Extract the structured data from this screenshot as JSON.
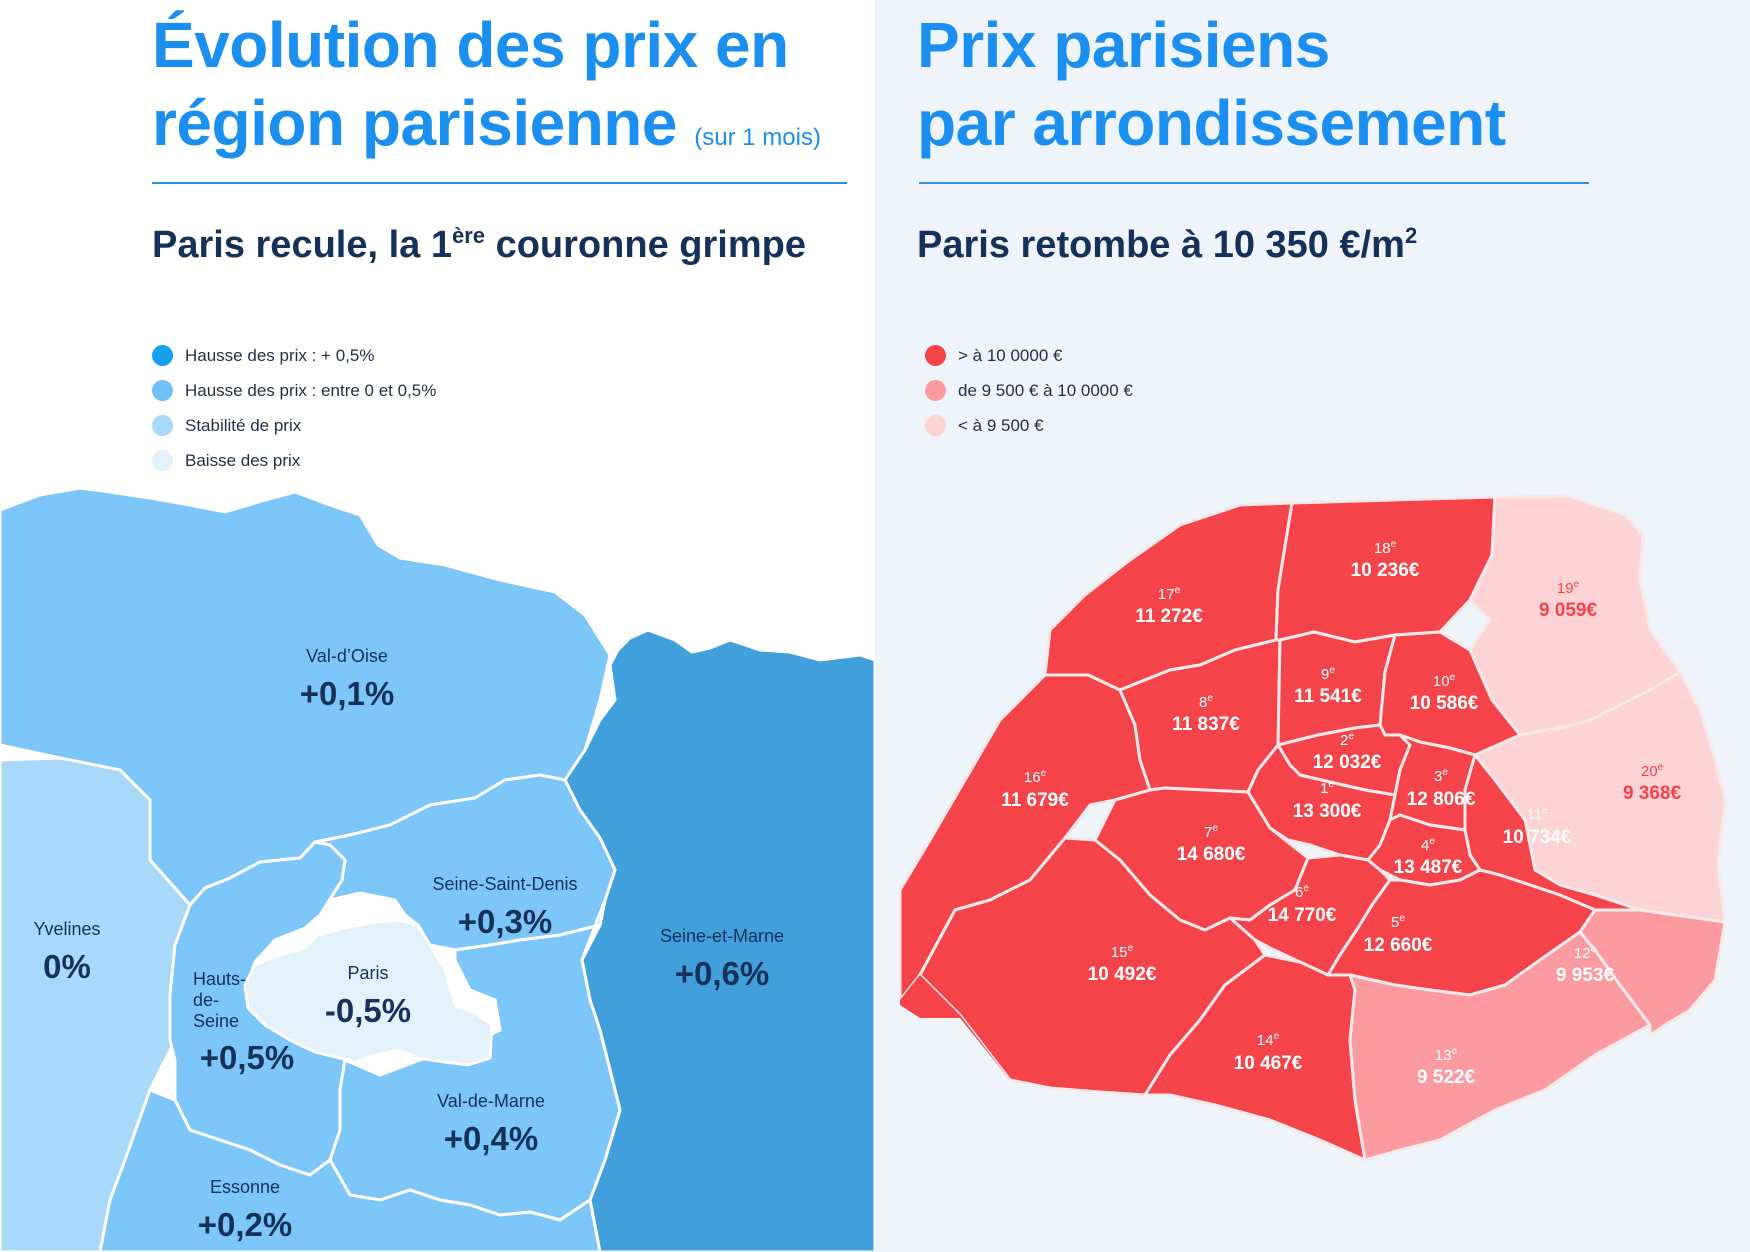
{
  "left": {
    "title": "Évolution des prix en région parisienne",
    "title_line1": "Évolution des prix en",
    "title_line2": "région parisienne",
    "title_note": "(sur 1 mois)",
    "subtitle_part1": "Paris recule, la 1",
    "subtitle_sup": "ère",
    "subtitle_part2": " couronne grimpe",
    "legend": [
      {
        "label": "Hausse des prix : + 0,5%",
        "color": "#14a0ee"
      },
      {
        "label": "Hausse des prix : entre 0 et 0,5%",
        "color": "#72c0f7"
      },
      {
        "label": "Stabilité de prix",
        "color": "#a8d8fa"
      },
      {
        "label": "Baisse des prix",
        "color": "#e3f1fb"
      }
    ],
    "regions": [
      {
        "name": "Val-d’Oise",
        "value": "+0,1%",
        "color": "#7cc6fa"
      },
      {
        "name": "Yvelines",
        "value": "0%",
        "color": "#a8d8fa"
      },
      {
        "name": "Seine-Saint-Denis",
        "value": "+0,3%",
        "color": "#7cc6fa"
      },
      {
        "name": "Seine-et-Marne",
        "value": "+0,6%",
        "color": "#41a0dc"
      },
      {
        "name": "Paris",
        "value": "-0,5%",
        "color": "#e3f1fb"
      },
      {
        "name": "Hauts-de-Seine",
        "name_lines": [
          "Hauts-",
          "de-",
          "Seine"
        ],
        "value": "+0,5%",
        "color": "#7cc6fa"
      },
      {
        "name": "Val-de-Marne",
        "value": "+0,4%",
        "color": "#7cc6fa"
      },
      {
        "name": "Essonne",
        "value": "+0,2%",
        "color": "#7cc6fa"
      }
    ]
  },
  "right": {
    "title_line1": "Prix parisiens",
    "title_line2": "par arrondissement",
    "subtitle_text": "Paris retombe à 10 350 €/m",
    "subtitle_sup": "2",
    "legend": [
      {
        "label": "> à 10 0000 €",
        "color": "#f4444a"
      },
      {
        "label": "de 9 500 € à 10 0000 €",
        "color": "#fb9ba0"
      },
      {
        "label": "< à 9 500 €",
        "color": "#fdd3d5"
      }
    ],
    "arrondissements": [
      {
        "num": "1",
        "sup": "e",
        "price": "13 300€",
        "color": "#f4444a"
      },
      {
        "num": "2",
        "sup": "e",
        "price": "12 032€",
        "color": "#f4444a"
      },
      {
        "num": "3",
        "sup": "e",
        "price": "12 806€",
        "color": "#f4444a"
      },
      {
        "num": "4",
        "sup": "e",
        "price": "13 487€",
        "color": "#f4444a"
      },
      {
        "num": "5",
        "sup": "e",
        "price": "12 660€",
        "color": "#f4444a"
      },
      {
        "num": "6",
        "sup": "e",
        "price": "14 770€",
        "color": "#f4444a"
      },
      {
        "num": "7",
        "sup": "e",
        "price": "14 680€",
        "color": "#f4444a"
      },
      {
        "num": "8",
        "sup": "e",
        "price": "11 837€",
        "color": "#f4444a"
      },
      {
        "num": "9",
        "sup": "e",
        "price": "11 541€",
        "color": "#f4444a"
      },
      {
        "num": "10",
        "sup": "e",
        "price": "10 586€",
        "color": "#f4444a"
      },
      {
        "num": "11",
        "sup": "e",
        "price": "10 734€",
        "color": "#f4444a"
      },
      {
        "num": "12",
        "sup": "e",
        "price": "9 953€",
        "color": "#fb9ba0"
      },
      {
        "num": "13",
        "sup": "e",
        "price": "9 522€",
        "color": "#fb9ba0"
      },
      {
        "num": "14",
        "sup": "e",
        "price": "10 467€",
        "color": "#f4444a"
      },
      {
        "num": "15",
        "sup": "e",
        "price": "10 492€",
        "color": "#f4444a"
      },
      {
        "num": "16",
        "sup": "e",
        "price": "11 679€",
        "color": "#f4444a"
      },
      {
        "num": "17",
        "sup": "e",
        "price": "11 272€",
        "color": "#f4444a"
      },
      {
        "num": "18",
        "sup": "e",
        "price": "10 236€",
        "color": "#f4444a"
      },
      {
        "num": "19",
        "sup": "e",
        "price": "9 059€",
        "color": "#fdd3d5"
      },
      {
        "num": "20",
        "sup": "e",
        "price": "9 368€",
        "color": "#fdd3d5"
      }
    ]
  }
}
